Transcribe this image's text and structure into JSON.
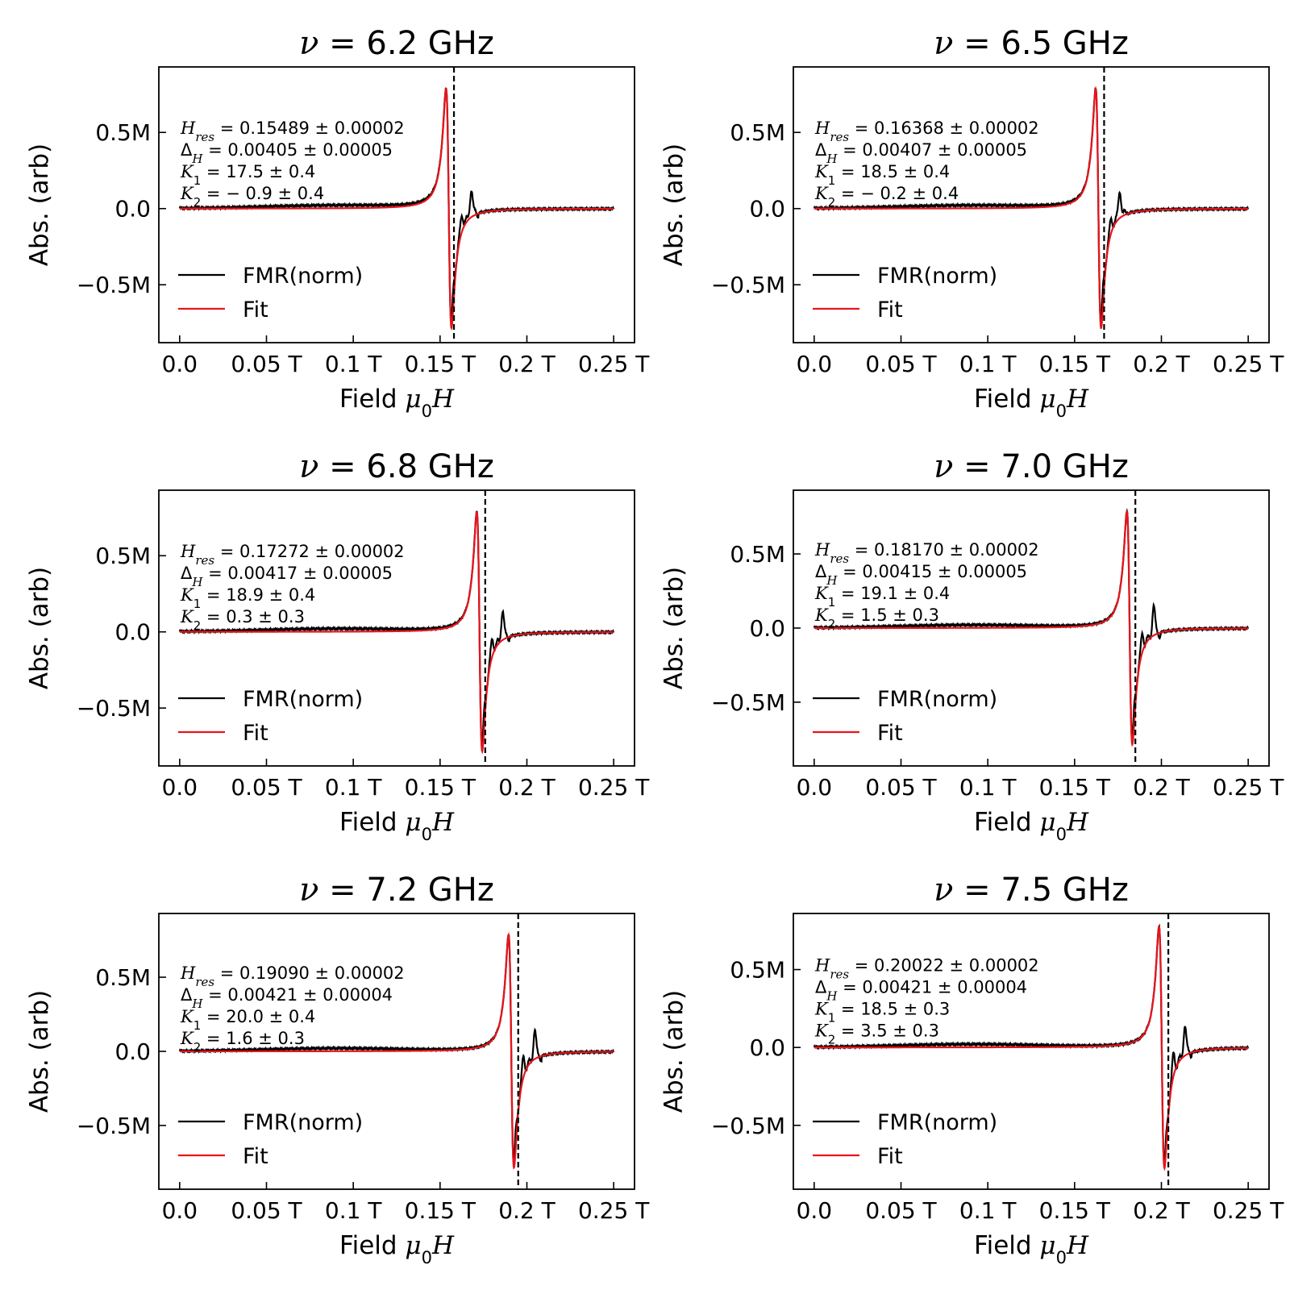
{
  "chart_data": [
    {
      "type": "line",
      "title_prefix": "ν = ",
      "title_value": "6.2",
      "title_unit": "GHz",
      "ylabel": "Abs. (arb)",
      "xlabel_text": "Field ",
      "xlabel_math": "μ",
      "xlabel_sub": "0",
      "xlabel_var": "H",
      "xlim": [
        -0.012,
        0.262
      ],
      "ylim": [
        -0.88,
        0.93
      ],
      "xticks": [
        0.0,
        0.05,
        0.1,
        0.15,
        0.2,
        0.25
      ],
      "xtick_labels": [
        "0.0",
        "0.05 T",
        "0.1 T",
        "0.15 T",
        "0.2 T",
        "0.25 T"
      ],
      "yticks": [
        0.5,
        0.0,
        -0.5
      ],
      "ytick_labels": [
        "0.5M",
        "0.0",
        "−0.5M"
      ],
      "vline": 0.158,
      "fit": {
        "h0": 0.155,
        "w": 0.0022,
        "amp": 0.85
      },
      "sat_peaks": [
        {
          "x": 0.1575,
          "h": 0.83
        },
        {
          "x": 0.1625,
          "h": 0.12
        },
        {
          "x": 0.168,
          "h": 0.19
        }
      ],
      "ann_lines": [
        {
          "sym": "H",
          "sub": "res",
          "val": "= 0.15489 ± 0.00002"
        },
        {
          "sym": "Δ",
          "sub": "H",
          "val": "= 0.00405 ± 0.00005"
        },
        {
          "sym": "K",
          "sub": "1",
          "val": "= 17.5 ± 0.4"
        },
        {
          "sym": "K",
          "sub": "2",
          "val": "= − 0.9 ± 0.4"
        }
      ],
      "legend": [
        "FMR(norm)",
        "Fit"
      ],
      "legend_position": "lower-left",
      "series": [
        {
          "name": "FMR(norm)",
          "color": "#000000"
        },
        {
          "name": "Fit",
          "color": "#e8141b"
        }
      ]
    },
    {
      "type": "line",
      "title_prefix": "ν = ",
      "title_value": "6.5",
      "title_unit": "GHz",
      "ylabel": "Abs. (arb)",
      "xlabel_text": "Field ",
      "xlabel_math": "μ",
      "xlabel_sub": "0",
      "xlabel_var": "H",
      "xlim": [
        -0.012,
        0.262
      ],
      "ylim": [
        -0.88,
        0.93
      ],
      "xticks": [
        0.0,
        0.05,
        0.1,
        0.15,
        0.2,
        0.25
      ],
      "xtick_labels": [
        "0.0",
        "0.05 T",
        "0.1 T",
        "0.15 T",
        "0.2 T",
        "0.25 T"
      ],
      "yticks": [
        0.5,
        0.0,
        -0.5
      ],
      "ytick_labels": [
        "0.5M",
        "0.0",
        "−0.5M"
      ],
      "vline": 0.167,
      "fit": {
        "h0": 0.1637,
        "w": 0.0022,
        "amp": 0.85
      },
      "sat_peaks": [
        {
          "x": 0.1663,
          "h": 0.85
        },
        {
          "x": 0.171,
          "h": 0.1
        },
        {
          "x": 0.176,
          "h": 0.19
        }
      ],
      "ann_lines": [
        {
          "sym": "H",
          "sub": "res",
          "val": "= 0.16368 ± 0.00002"
        },
        {
          "sym": "Δ",
          "sub": "H",
          "val": "= 0.00407 ± 0.00005"
        },
        {
          "sym": "K",
          "sub": "1",
          "val": "= 18.5 ± 0.4"
        },
        {
          "sym": "K",
          "sub": "2",
          "val": "= − 0.2 ± 0.4"
        }
      ],
      "legend": [
        "FMR(norm)",
        "Fit"
      ],
      "legend_position": "lower-left",
      "series": [
        {
          "name": "FMR(norm)",
          "color": "#000000"
        },
        {
          "name": "Fit",
          "color": "#e8141b"
        }
      ]
    },
    {
      "type": "line",
      "title_prefix": "ν = ",
      "title_value": "6.8",
      "title_unit": "GHz",
      "ylabel": "Abs. (arb)",
      "xlabel_text": "Field ",
      "xlabel_math": "μ",
      "xlabel_sub": "0",
      "xlabel_var": "H",
      "xlim": [
        -0.012,
        0.262
      ],
      "ylim": [
        -0.88,
        0.93
      ],
      "xticks": [
        0.0,
        0.05,
        0.1,
        0.15,
        0.2,
        0.25
      ],
      "xtick_labels": [
        "0.0",
        "0.05 T",
        "0.1 T",
        "0.15 T",
        "0.2 T",
        "0.25 T"
      ],
      "yticks": [
        0.5,
        0.0,
        -0.5
      ],
      "ytick_labels": [
        "0.5M",
        "0.0",
        "−0.5M"
      ],
      "vline": 0.176,
      "fit": {
        "h0": 0.1727,
        "w": 0.0022,
        "amp": 0.85
      },
      "sat_peaks": [
        {
          "x": 0.1753,
          "h": 0.84
        },
        {
          "x": 0.18,
          "h": 0.12
        },
        {
          "x": 0.186,
          "h": 0.2
        }
      ],
      "ann_lines": [
        {
          "sym": "H",
          "sub": "res",
          "val": "= 0.17272 ± 0.00002"
        },
        {
          "sym": "Δ",
          "sub": "H",
          "val": "= 0.00417 ± 0.00005"
        },
        {
          "sym": "K",
          "sub": "1",
          "val": "= 18.9 ± 0.4"
        },
        {
          "sym": "K",
          "sub": "2",
          "val": "= 0.3 ± 0.3"
        }
      ],
      "legend": [
        "FMR(norm)",
        "Fit"
      ],
      "legend_position": "lower-left",
      "series": [
        {
          "name": "FMR(norm)",
          "color": "#000000"
        },
        {
          "name": "Fit",
          "color": "#e8141b"
        }
      ]
    },
    {
      "type": "line",
      "title_prefix": "ν = ",
      "title_value": "7.0",
      "title_unit": "GHz",
      "ylabel": "Abs. (arb)",
      "xlabel_text": "Field ",
      "xlabel_math": "μ",
      "xlabel_sub": "0",
      "xlabel_var": "H",
      "xlim": [
        -0.012,
        0.262
      ],
      "ylim": [
        -0.93,
        0.93
      ],
      "xticks": [
        0.0,
        0.05,
        0.1,
        0.15,
        0.2,
        0.25
      ],
      "xtick_labels": [
        "0.0",
        "0.05 T",
        "0.1 T",
        "0.15 T",
        "0.2 T",
        "0.25 T"
      ],
      "yticks": [
        0.5,
        0.0,
        -0.5
      ],
      "ytick_labels": [
        "0.5M",
        "0.0",
        "−0.5M"
      ],
      "vline": 0.185,
      "fit": {
        "h0": 0.1817,
        "w": 0.0022,
        "amp": 0.85
      },
      "sat_peaks": [
        {
          "x": 0.1843,
          "h": 0.84
        },
        {
          "x": 0.189,
          "h": 0.13
        },
        {
          "x": 0.1955,
          "h": 0.2
        }
      ],
      "ann_lines": [
        {
          "sym": "H",
          "sub": "res",
          "val": "= 0.18170 ± 0.00002"
        },
        {
          "sym": "Δ",
          "sub": "H",
          "val": "= 0.00415 ± 0.00005"
        },
        {
          "sym": "K",
          "sub": "1",
          "val": "= 19.1 ± 0.4"
        },
        {
          "sym": "K",
          "sub": "2",
          "val": "= 1.5 ± 0.3"
        }
      ],
      "legend": [
        "FMR(norm)",
        "Fit"
      ],
      "legend_position": "lower-left",
      "series": [
        {
          "name": "FMR(norm)",
          "color": "#000000"
        },
        {
          "name": "Fit",
          "color": "#e8141b"
        }
      ]
    },
    {
      "type": "line",
      "title_prefix": "ν = ",
      "title_value": "7.2",
      "title_unit": "GHz",
      "ylabel": "Abs. (arb)",
      "xlabel_text": "Field ",
      "xlabel_math": "μ",
      "xlabel_sub": "0",
      "xlabel_var": "H",
      "xlim": [
        -0.012,
        0.262
      ],
      "ylim": [
        -0.93,
        0.93
      ],
      "xticks": [
        0.0,
        0.05,
        0.1,
        0.15,
        0.2,
        0.25
      ],
      "xtick_labels": [
        "0.0",
        "0.05 T",
        "0.1 T",
        "0.15 T",
        "0.2 T",
        "0.25 T"
      ],
      "yticks": [
        0.5,
        0.0,
        -0.5
      ],
      "ytick_labels": [
        "0.5M",
        "0.0",
        "−0.5M"
      ],
      "vline": 0.195,
      "fit": {
        "h0": 0.191,
        "w": 0.0022,
        "amp": 0.85
      },
      "sat_peaks": [
        {
          "x": 0.1935,
          "h": 0.85
        },
        {
          "x": 0.198,
          "h": 0.14
        },
        {
          "x": 0.2045,
          "h": 0.2
        }
      ],
      "ann_lines": [
        {
          "sym": "H",
          "sub": "res",
          "val": "= 0.19090 ± 0.00002"
        },
        {
          "sym": "Δ",
          "sub": "H",
          "val": "= 0.00421 ± 0.00004"
        },
        {
          "sym": "K",
          "sub": "1",
          "val": "= 20.0 ± 0.4"
        },
        {
          "sym": "K",
          "sub": "2",
          "val": "= 1.6 ± 0.3"
        }
      ],
      "legend": [
        "FMR(norm)",
        "Fit"
      ],
      "legend_position": "lower-left",
      "series": [
        {
          "name": "FMR(norm)",
          "color": "#000000"
        },
        {
          "name": "Fit",
          "color": "#e8141b"
        }
      ]
    },
    {
      "type": "line",
      "title_prefix": "ν = ",
      "title_value": "7.5",
      "title_unit": "GHz",
      "ylabel": "Abs. (arb)",
      "xlabel_text": "Field ",
      "xlabel_math": "μ",
      "xlabel_sub": "0",
      "xlabel_var": "H",
      "xlim": [
        -0.012,
        0.262
      ],
      "ylim": [
        -0.91,
        0.86
      ],
      "xticks": [
        0.0,
        0.05,
        0.1,
        0.15,
        0.2,
        0.25
      ],
      "xtick_labels": [
        "0.0",
        "0.05 T",
        "0.1 T",
        "0.15 T",
        "0.2 T",
        "0.25 T"
      ],
      "yticks": [
        0.5,
        0.0,
        -0.5
      ],
      "ytick_labels": [
        "0.5M",
        "0.0",
        "−0.5M"
      ],
      "vline": 0.204,
      "fit": {
        "h0": 0.2002,
        "w": 0.0022,
        "amp": 0.84
      },
      "sat_peaks": [
        {
          "x": 0.2027,
          "h": 0.78
        },
        {
          "x": 0.207,
          "h": 0.14
        },
        {
          "x": 0.2135,
          "h": 0.2
        }
      ],
      "ann_lines": [
        {
          "sym": "H",
          "sub": "res",
          "val": "= 0.20022 ± 0.00002"
        },
        {
          "sym": "Δ",
          "sub": "H",
          "val": "= 0.00421 ± 0.00004"
        },
        {
          "sym": "K",
          "sub": "1",
          "val": "= 18.5 ± 0.3"
        },
        {
          "sym": "K",
          "sub": "2",
          "val": "= 3.5 ± 0.3"
        }
      ],
      "legend": [
        "FMR(norm)",
        "Fit"
      ],
      "legend_position": "lower-left",
      "series": [
        {
          "name": "FMR(norm)",
          "color": "#000000"
        },
        {
          "name": "Fit",
          "color": "#e8141b"
        }
      ]
    }
  ]
}
